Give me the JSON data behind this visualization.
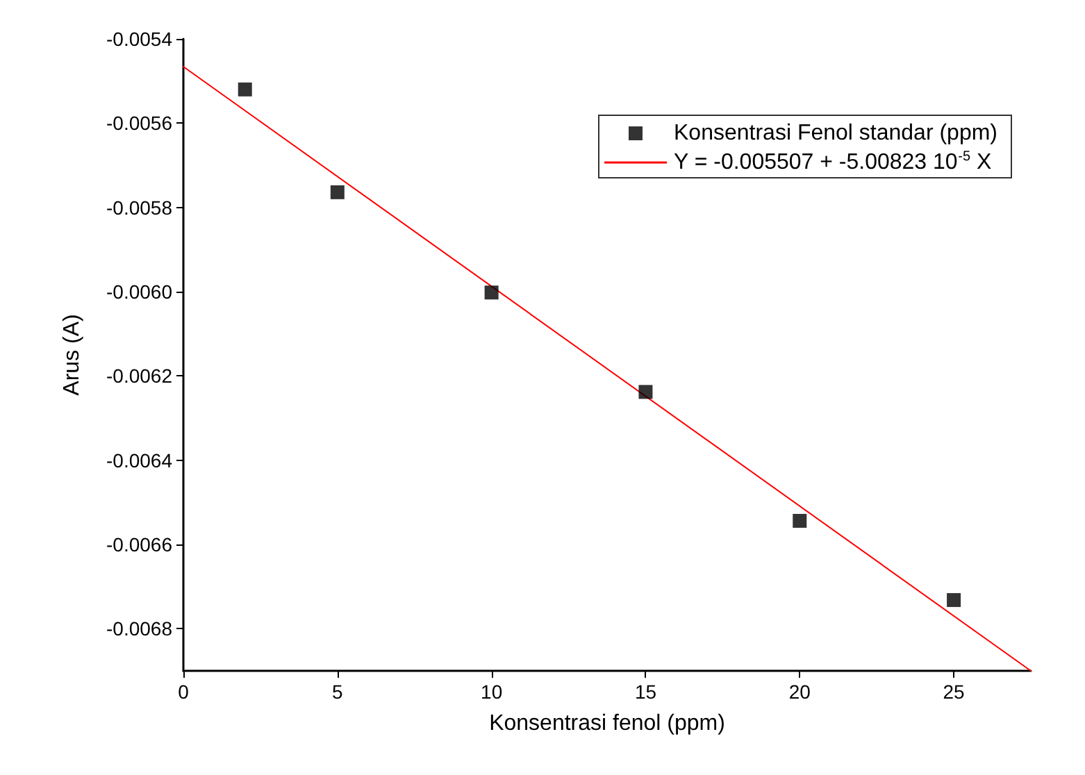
{
  "chart_data": {
    "type": "scatter",
    "xlabel": "Konsentrasi fenol (ppm)",
    "ylabel": "Arus (A)",
    "xlim": [
      0,
      27.5
    ],
    "xticks": [
      0,
      5,
      10,
      15,
      20,
      25
    ],
    "ylim": [
      -0.0069,
      -0.0054
    ],
    "yticks": [
      {
        "value": -0.0054,
        "label": "-0.0054"
      },
      {
        "value": -0.0056,
        "label": "-0.0056"
      },
      {
        "value": -0.0058,
        "label": "-0.0058"
      },
      {
        "value": -0.006,
        "label": "-0.0060"
      },
      {
        "value": -0.0062,
        "label": "-0.0062"
      },
      {
        "value": -0.0064,
        "label": "-0.0064"
      },
      {
        "value": -0.0066,
        "label": "-0.0066"
      },
      {
        "value": -0.0068,
        "label": "-0.0068"
      }
    ],
    "grid": false,
    "legend": "top right",
    "series": [
      {
        "name": "Konsentrasi Fenol standar (ppm)",
        "type": "scatter",
        "marker": "square",
        "color": "#000000",
        "x": [
          2,
          5,
          10,
          15,
          20,
          25
        ],
        "values": [
          -0.00552,
          -0.005764,
          -0.006002,
          -0.006238,
          -0.006544,
          -0.006732
        ]
      },
      {
        "name": "Y = -0.005507 + -5.00823 10$^{-5}$ X",
        "type": "line",
        "marker": "none",
        "line_style": "solid",
        "color": "#ff0000",
        "x": [
          0,
          27.5
        ],
        "values": [
          -0.005466,
          -0.0069
        ]
      }
    ]
  }
}
